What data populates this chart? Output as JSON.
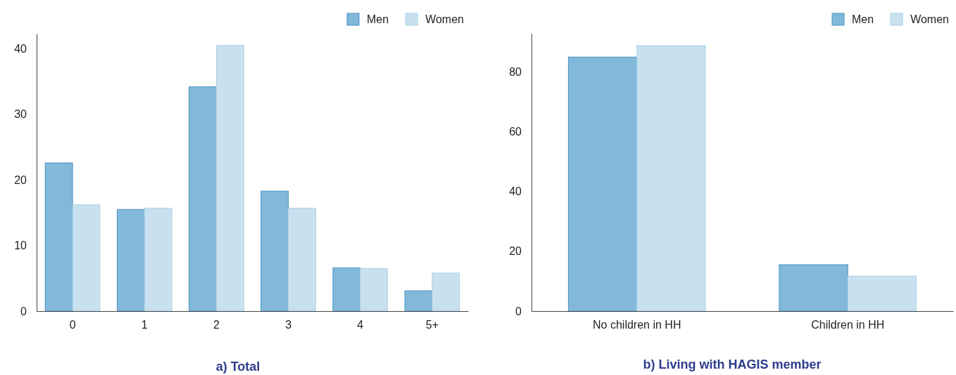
{
  "chart_data": [
    {
      "type": "bar",
      "title": "a) Total",
      "categories": [
        "0",
        "1",
        "2",
        "3",
        "4",
        "5+"
      ],
      "series": [
        {
          "name": "Men",
          "color": "#82b8d9",
          "values": [
            22.6,
            15.5,
            34.2,
            18.3,
            6.6,
            3.1
          ]
        },
        {
          "name": "Women",
          "color": "#c9e1ef",
          "values": [
            16.2,
            15.7,
            40.5,
            15.7,
            6.5,
            5.8
          ]
        }
      ],
      "ylim": [
        0,
        42.3
      ],
      "yticks": [
        0,
        10,
        20,
        30,
        40
      ],
      "legend": "top right"
    },
    {
      "type": "bar",
      "title": "b) Living with HAGIS member",
      "categories": [
        "No children in HH",
        "Children in HH"
      ],
      "series": [
        {
          "name": "Men",
          "color": "#82b8d9",
          "values": [
            84.9,
            15.5
          ]
        },
        {
          "name": "Women",
          "color": "#c9e1ef",
          "values": [
            88.7,
            11.7
          ]
        }
      ],
      "ylim": [
        0,
        92.7
      ],
      "yticks": [
        0,
        20,
        40,
        60,
        80
      ],
      "legend": "top right"
    }
  ]
}
